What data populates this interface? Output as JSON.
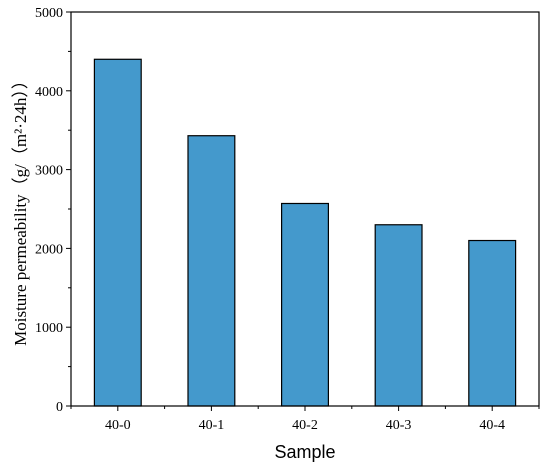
{
  "chart_data": {
    "type": "bar",
    "categories": [
      "40-0",
      "40-1",
      "40-2",
      "40-3",
      "40-4"
    ],
    "values": [
      4400,
      3430,
      2570,
      2300,
      2100
    ],
    "title": "",
    "xlabel": "Sample",
    "ylabel": "Moisture permeability（g/（m²·24h））",
    "ylim": [
      0,
      5000
    ],
    "yticks": [
      0,
      1000,
      2000,
      3000,
      4000,
      5000
    ],
    "grid": false,
    "legend": "none",
    "bar_color": "#4499cc"
  }
}
